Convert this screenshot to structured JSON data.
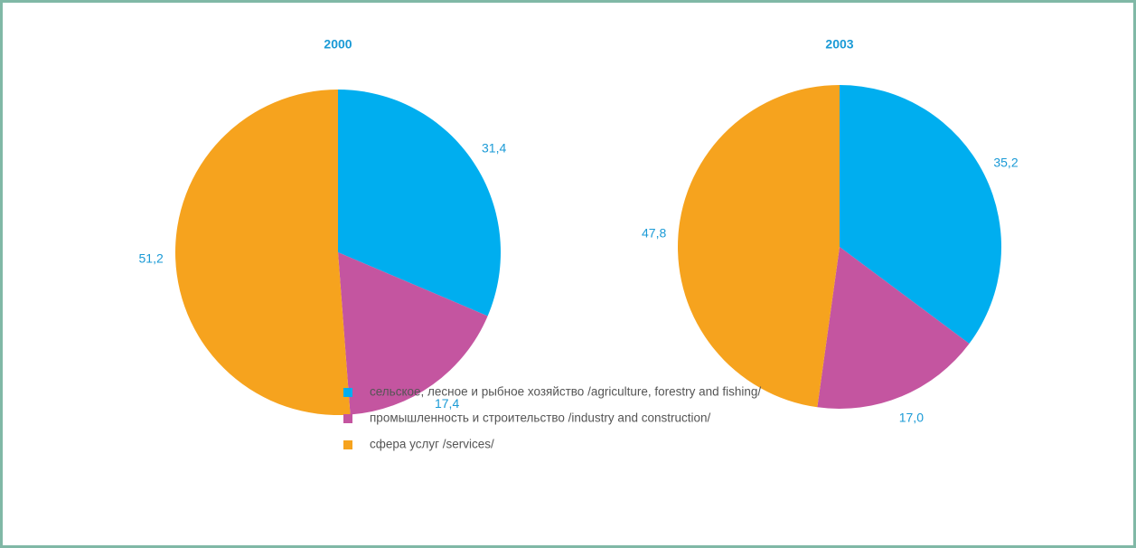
{
  "chart_data": [
    {
      "type": "pie",
      "title": "2000",
      "values": [
        31.4,
        17.4,
        51.2
      ],
      "value_labels": [
        "31,4",
        "17,4",
        "51,2"
      ]
    },
    {
      "type": "pie",
      "title": "2003",
      "values": [
        35.2,
        17.0,
        47.8
      ],
      "value_labels": [
        "35,2",
        "17,0",
        "47,8"
      ]
    }
  ],
  "legend": {
    "labels": [
      "сельское, лесное и рыбное хозяйство /agriculture, forestry and fishing/",
      "промышленность и строительство /industry and construction/",
      "сфера услуг /services/"
    ],
    "colors": [
      "#00aeef",
      "#c455a0",
      "#f6a31e"
    ]
  }
}
